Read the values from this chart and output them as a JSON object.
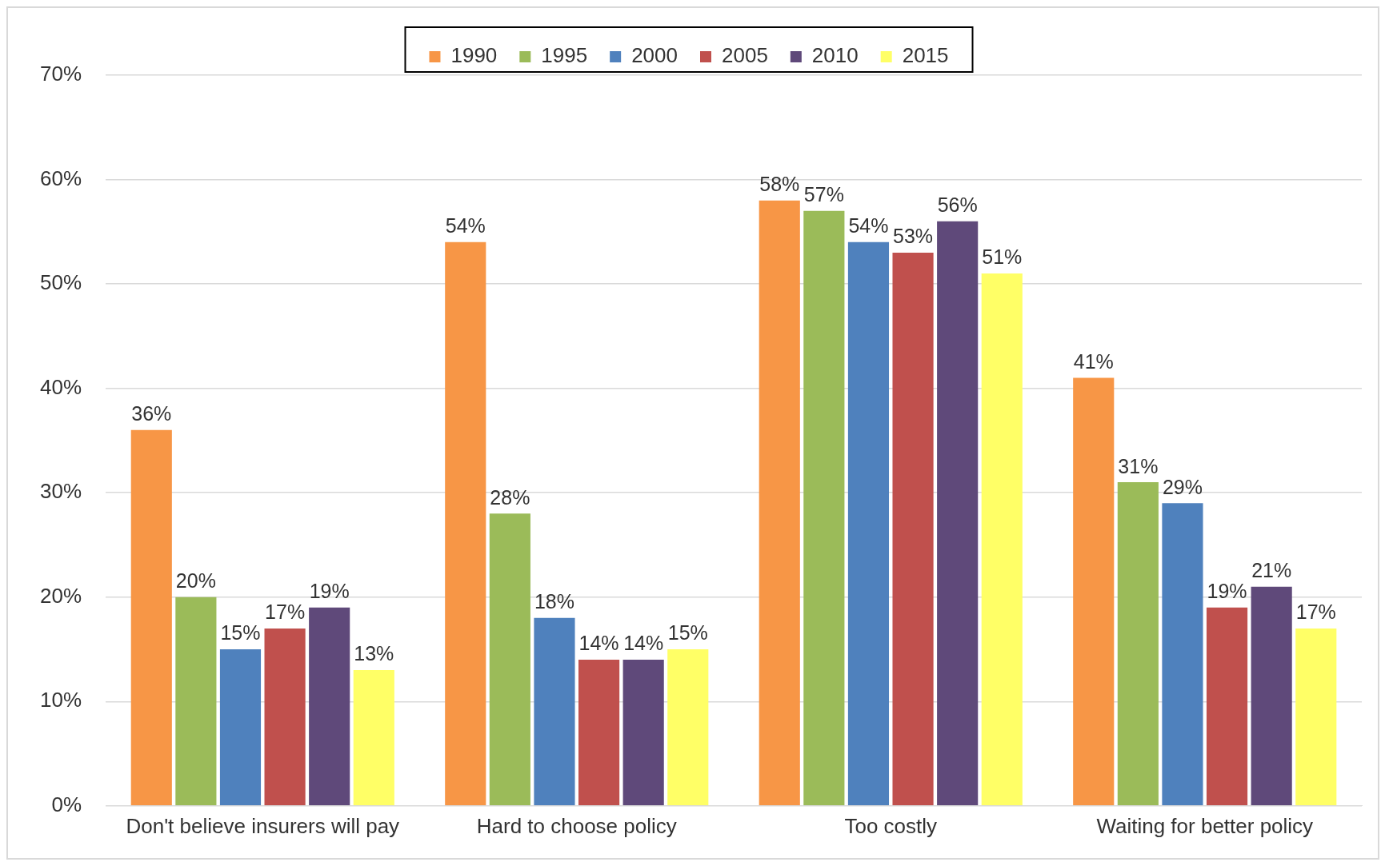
{
  "chart_data": {
    "type": "bar",
    "categories": [
      "Don't believe insurers will pay",
      "Hard to choose policy",
      "Too costly",
      "Waiting for better policy"
    ],
    "series": [
      {
        "name": "1990",
        "color": "#f79646",
        "values": [
          36,
          54,
          58,
          41
        ],
        "value_labels": [
          "36%",
          "54%",
          "58%",
          "41%"
        ]
      },
      {
        "name": "1995",
        "color": "#9bbb59",
        "values": [
          20,
          28,
          57,
          31
        ],
        "value_labels": [
          "20%",
          "28%",
          "57%",
          "31%"
        ]
      },
      {
        "name": "2000",
        "color": "#4f81bd",
        "values": [
          15,
          18,
          54,
          29
        ],
        "value_labels": [
          "15%",
          "18%",
          "54%",
          "29%"
        ]
      },
      {
        "name": "2005",
        "color": "#c0504d",
        "values": [
          17,
          14,
          53,
          19
        ],
        "value_labels": [
          "17%",
          "14%",
          "53%",
          "19%"
        ]
      },
      {
        "name": "2010",
        "color": "#5f497a",
        "values": [
          19,
          14,
          56,
          21
        ],
        "value_labels": [
          "19%",
          "14%",
          "56%",
          "21%"
        ]
      },
      {
        "name": "2015",
        "color": "#ffff66",
        "values": [
          13,
          15,
          51,
          17
        ],
        "value_labels": [
          "13%",
          "15%",
          "51%",
          "17%"
        ]
      }
    ],
    "ylim": [
      0,
      70
    ],
    "yticks": [
      {
        "value": 0,
        "label": "0%"
      },
      {
        "value": 10,
        "label": "10%"
      },
      {
        "value": 20,
        "label": "20%"
      },
      {
        "value": 30,
        "label": "30%"
      },
      {
        "value": 40,
        "label": "40%"
      },
      {
        "value": 50,
        "label": "50%"
      },
      {
        "value": 60,
        "label": "60%"
      },
      {
        "value": 70,
        "label": "70%"
      }
    ],
    "grid": "y",
    "legend": "top"
  }
}
